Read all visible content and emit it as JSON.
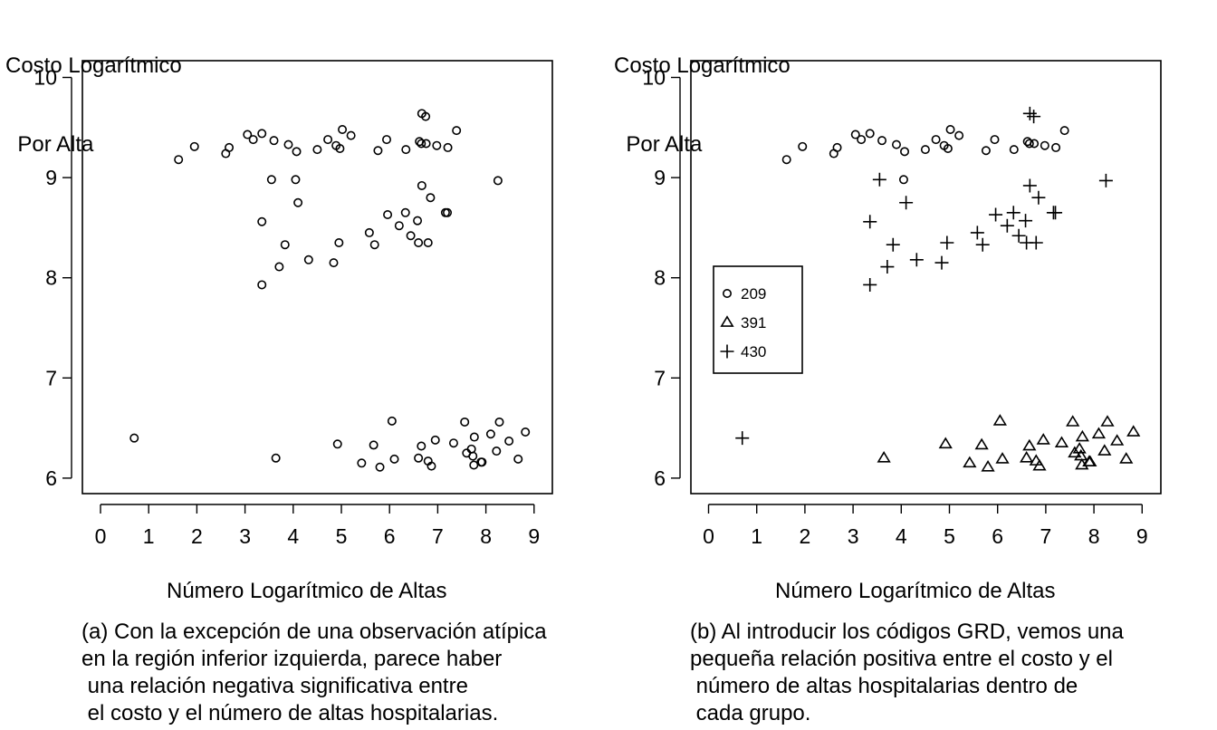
{
  "chart_data": [
    {
      "type": "scatter",
      "panel": "a",
      "ylabel": [
        "Costo Logarítmico",
        "  Por Alta"
      ],
      "xlabel": "Número Logarítmico de Altas",
      "xlim": [
        -0.4,
        9.4
      ],
      "ylim": [
        5.85,
        10.15
      ],
      "xticks": [
        "0",
        "1",
        "2",
        "3",
        "4",
        "5",
        "6",
        "7",
        "8",
        "9"
      ],
      "yticks": [
        "6",
        "7",
        "8",
        "9",
        "10"
      ],
      "grid": false,
      "caption": [
        "(a) Con la excepción de una observación atípica",
        "en la región inferior izquierda, parece haber",
        " una relación negativa significativa entre",
        " el costo y el número de altas hospitalarias."
      ],
      "series": [
        {
          "marker": "circle",
          "points": [
            [
              1.62,
              9.18
            ],
            [
              1.95,
              9.31
            ],
            [
              2.6,
              9.24
            ],
            [
              2.67,
              9.3
            ],
            [
              3.05,
              9.43
            ],
            [
              3.17,
              9.38
            ],
            [
              3.35,
              9.44
            ],
            [
              3.6,
              9.37
            ],
            [
              3.9,
              9.33
            ],
            [
              4.07,
              9.26
            ],
            [
              4.5,
              9.28
            ],
            [
              4.72,
              9.38
            ],
            [
              4.89,
              9.32
            ],
            [
              4.97,
              9.29
            ],
            [
              5.02,
              9.48
            ],
            [
              5.2,
              9.42
            ],
            [
              5.76,
              9.27
            ],
            [
              5.94,
              9.38
            ],
            [
              6.34,
              9.28
            ],
            [
              6.62,
              9.36
            ],
            [
              6.66,
              9.34
            ],
            [
              6.76,
              9.34
            ],
            [
              6.98,
              9.32
            ],
            [
              7.21,
              9.3
            ],
            [
              7.39,
              9.47
            ],
            [
              6.67,
              9.64
            ],
            [
              6.75,
              9.61
            ],
            [
              3.55,
              8.98
            ],
            [
              4.05,
              8.98
            ],
            [
              4.1,
              8.75
            ],
            [
              3.35,
              8.56
            ],
            [
              6.67,
              8.92
            ],
            [
              6.85,
              8.8
            ],
            [
              7.16,
              8.65
            ],
            [
              7.2,
              8.65
            ],
            [
              8.25,
              8.97
            ],
            [
              5.96,
              8.63
            ],
            [
              6.33,
              8.65
            ],
            [
              6.2,
              8.52
            ],
            [
              6.58,
              8.57
            ],
            [
              6.44,
              8.42
            ],
            [
              5.58,
              8.45
            ],
            [
              5.69,
              8.33
            ],
            [
              6.6,
              8.35
            ],
            [
              6.8,
              8.35
            ],
            [
              3.83,
              8.33
            ],
            [
              4.95,
              8.35
            ],
            [
              3.71,
              8.11
            ],
            [
              4.32,
              8.18
            ],
            [
              4.84,
              8.15
            ],
            [
              3.35,
              7.93
            ],
            [
              0.7,
              6.4
            ],
            [
              3.64,
              6.2
            ],
            [
              4.92,
              6.34
            ],
            [
              5.42,
              6.15
            ],
            [
              5.67,
              6.33
            ],
            [
              5.8,
              6.11
            ],
            [
              6.05,
              6.57
            ],
            [
              6.1,
              6.19
            ],
            [
              6.6,
              6.2
            ],
            [
              6.66,
              6.32
            ],
            [
              6.8,
              6.17
            ],
            [
              6.87,
              6.12
            ],
            [
              6.95,
              6.38
            ],
            [
              7.33,
              6.35
            ],
            [
              7.56,
              6.56
            ],
            [
              7.6,
              6.25
            ],
            [
              7.7,
              6.29
            ],
            [
              7.73,
              6.22
            ],
            [
              7.76,
              6.41
            ],
            [
              7.75,
              6.13
            ],
            [
              7.9,
              6.16
            ],
            [
              7.92,
              6.16
            ],
            [
              8.1,
              6.44
            ],
            [
              8.22,
              6.27
            ],
            [
              8.28,
              6.56
            ],
            [
              8.48,
              6.37
            ],
            [
              8.67,
              6.19
            ],
            [
              8.82,
              6.46
            ]
          ]
        }
      ]
    },
    {
      "type": "scatter",
      "panel": "b",
      "ylabel": [
        "Costo Logarítmico",
        "  Por Alta"
      ],
      "xlabel": "Número Logarítmico de Altas",
      "xlim": [
        -0.4,
        9.4
      ],
      "ylim": [
        5.85,
        10.15
      ],
      "xticks": [
        "0",
        "1",
        "2",
        "3",
        "4",
        "5",
        "6",
        "7",
        "8",
        "9"
      ],
      "yticks": [
        "6",
        "7",
        "8",
        "9",
        "10"
      ],
      "grid": false,
      "legend_position": "left",
      "caption": [
        "(b) Al introducir los códigos GRD, vemos una",
        "pequeña relación positiva entre el costo y el",
        " número de altas hospitalarias dentro de",
        " cada grupo."
      ],
      "series": [
        {
          "name": "209",
          "marker": "circle",
          "points": [
            [
              1.62,
              9.18
            ],
            [
              1.95,
              9.31
            ],
            [
              2.6,
              9.24
            ],
            [
              2.67,
              9.3
            ],
            [
              3.05,
              9.43
            ],
            [
              3.17,
              9.38
            ],
            [
              3.35,
              9.44
            ],
            [
              3.6,
              9.37
            ],
            [
              3.9,
              9.33
            ],
            [
              4.07,
              9.26
            ],
            [
              4.5,
              9.28
            ],
            [
              4.72,
              9.38
            ],
            [
              4.89,
              9.32
            ],
            [
              4.97,
              9.29
            ],
            [
              5.02,
              9.48
            ],
            [
              5.2,
              9.42
            ],
            [
              5.76,
              9.27
            ],
            [
              5.94,
              9.38
            ],
            [
              6.34,
              9.28
            ],
            [
              6.62,
              9.36
            ],
            [
              6.66,
              9.34
            ],
            [
              6.76,
              9.34
            ],
            [
              6.98,
              9.32
            ],
            [
              7.21,
              9.3
            ],
            [
              7.39,
              9.47
            ],
            [
              4.05,
              8.98
            ]
          ]
        },
        {
          "name": "391",
          "marker": "triangle",
          "points": [
            [
              3.64,
              6.2
            ],
            [
              4.92,
              6.34
            ],
            [
              5.42,
              6.15
            ],
            [
              5.67,
              6.33
            ],
            [
              5.8,
              6.11
            ],
            [
              6.05,
              6.57
            ],
            [
              6.1,
              6.19
            ],
            [
              6.6,
              6.2
            ],
            [
              6.66,
              6.32
            ],
            [
              6.8,
              6.17
            ],
            [
              6.87,
              6.12
            ],
            [
              6.95,
              6.38
            ],
            [
              7.33,
              6.35
            ],
            [
              7.56,
              6.56
            ],
            [
              7.6,
              6.25
            ],
            [
              7.7,
              6.29
            ],
            [
              7.73,
              6.22
            ],
            [
              7.76,
              6.41
            ],
            [
              7.75,
              6.13
            ],
            [
              7.9,
              6.16
            ],
            [
              7.92,
              6.16
            ],
            [
              8.1,
              6.44
            ],
            [
              8.22,
              6.27
            ],
            [
              8.28,
              6.56
            ],
            [
              8.48,
              6.37
            ],
            [
              8.67,
              6.19
            ],
            [
              8.82,
              6.46
            ]
          ]
        },
        {
          "name": "430",
          "marker": "plus",
          "points": [
            [
              6.67,
              9.64
            ],
            [
              6.75,
              9.61
            ],
            [
              3.55,
              8.98
            ],
            [
              4.1,
              8.75
            ],
            [
              3.35,
              8.56
            ],
            [
              6.67,
              8.92
            ],
            [
              6.85,
              8.8
            ],
            [
              7.16,
              8.65
            ],
            [
              7.2,
              8.65
            ],
            [
              8.25,
              8.97
            ],
            [
              5.96,
              8.63
            ],
            [
              6.33,
              8.65
            ],
            [
              6.2,
              8.52
            ],
            [
              6.58,
              8.57
            ],
            [
              6.44,
              8.42
            ],
            [
              5.58,
              8.45
            ],
            [
              5.69,
              8.33
            ],
            [
              6.6,
              8.35
            ],
            [
              6.8,
              8.35
            ],
            [
              3.83,
              8.33
            ],
            [
              4.95,
              8.35
            ],
            [
              3.71,
              8.11
            ],
            [
              4.32,
              8.18
            ],
            [
              4.84,
              8.15
            ],
            [
              3.35,
              7.93
            ],
            [
              0.7,
              6.4
            ]
          ]
        }
      ]
    }
  ]
}
